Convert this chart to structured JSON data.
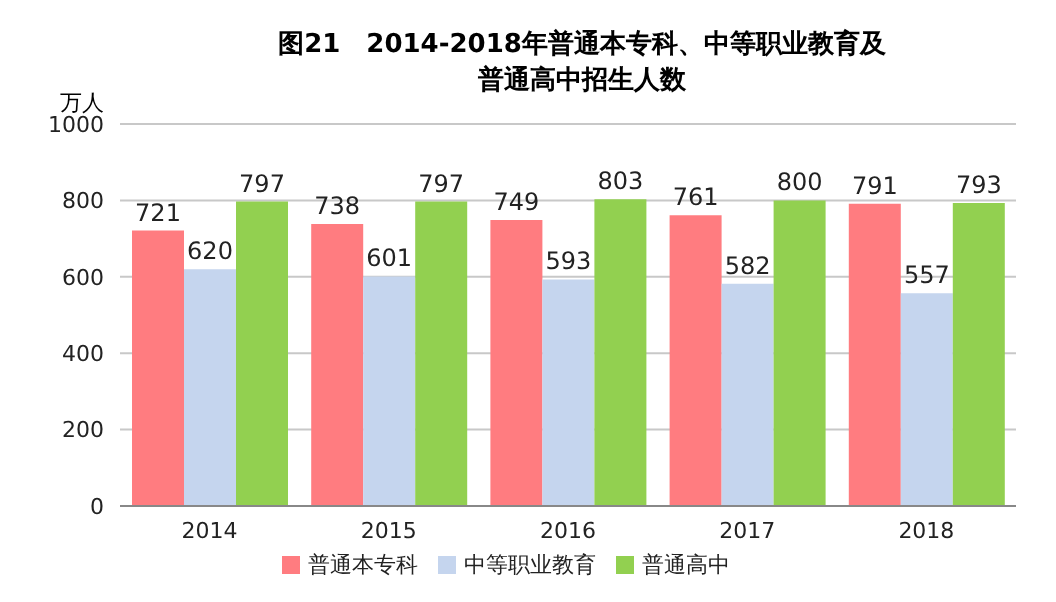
{
  "chart_data": {
    "type": "bar",
    "title": "图21　2014-2018年普通本专科、中等职业教育及普通高中招生人数",
    "ylabel": "万人",
    "categories": [
      "2014",
      "2015",
      "2016",
      "2017",
      "2018"
    ],
    "series": [
      {
        "name": "普通本专科",
        "color": "#ff7c80",
        "values": [
          721,
          738,
          749,
          761,
          791
        ]
      },
      {
        "name": "中等职业教育",
        "color": "#c5d5ee",
        "values": [
          620,
          601,
          593,
          582,
          557
        ]
      },
      {
        "name": "普通高中",
        "color": "#92d050",
        "values": [
          797,
          797,
          803,
          800,
          793
        ]
      }
    ],
    "ylim": [
      0,
      1000
    ],
    "yticks": [
      0,
      200,
      400,
      600,
      800,
      1000
    ],
    "grid": "y",
    "legend": "bottom",
    "data_labels": true
  }
}
